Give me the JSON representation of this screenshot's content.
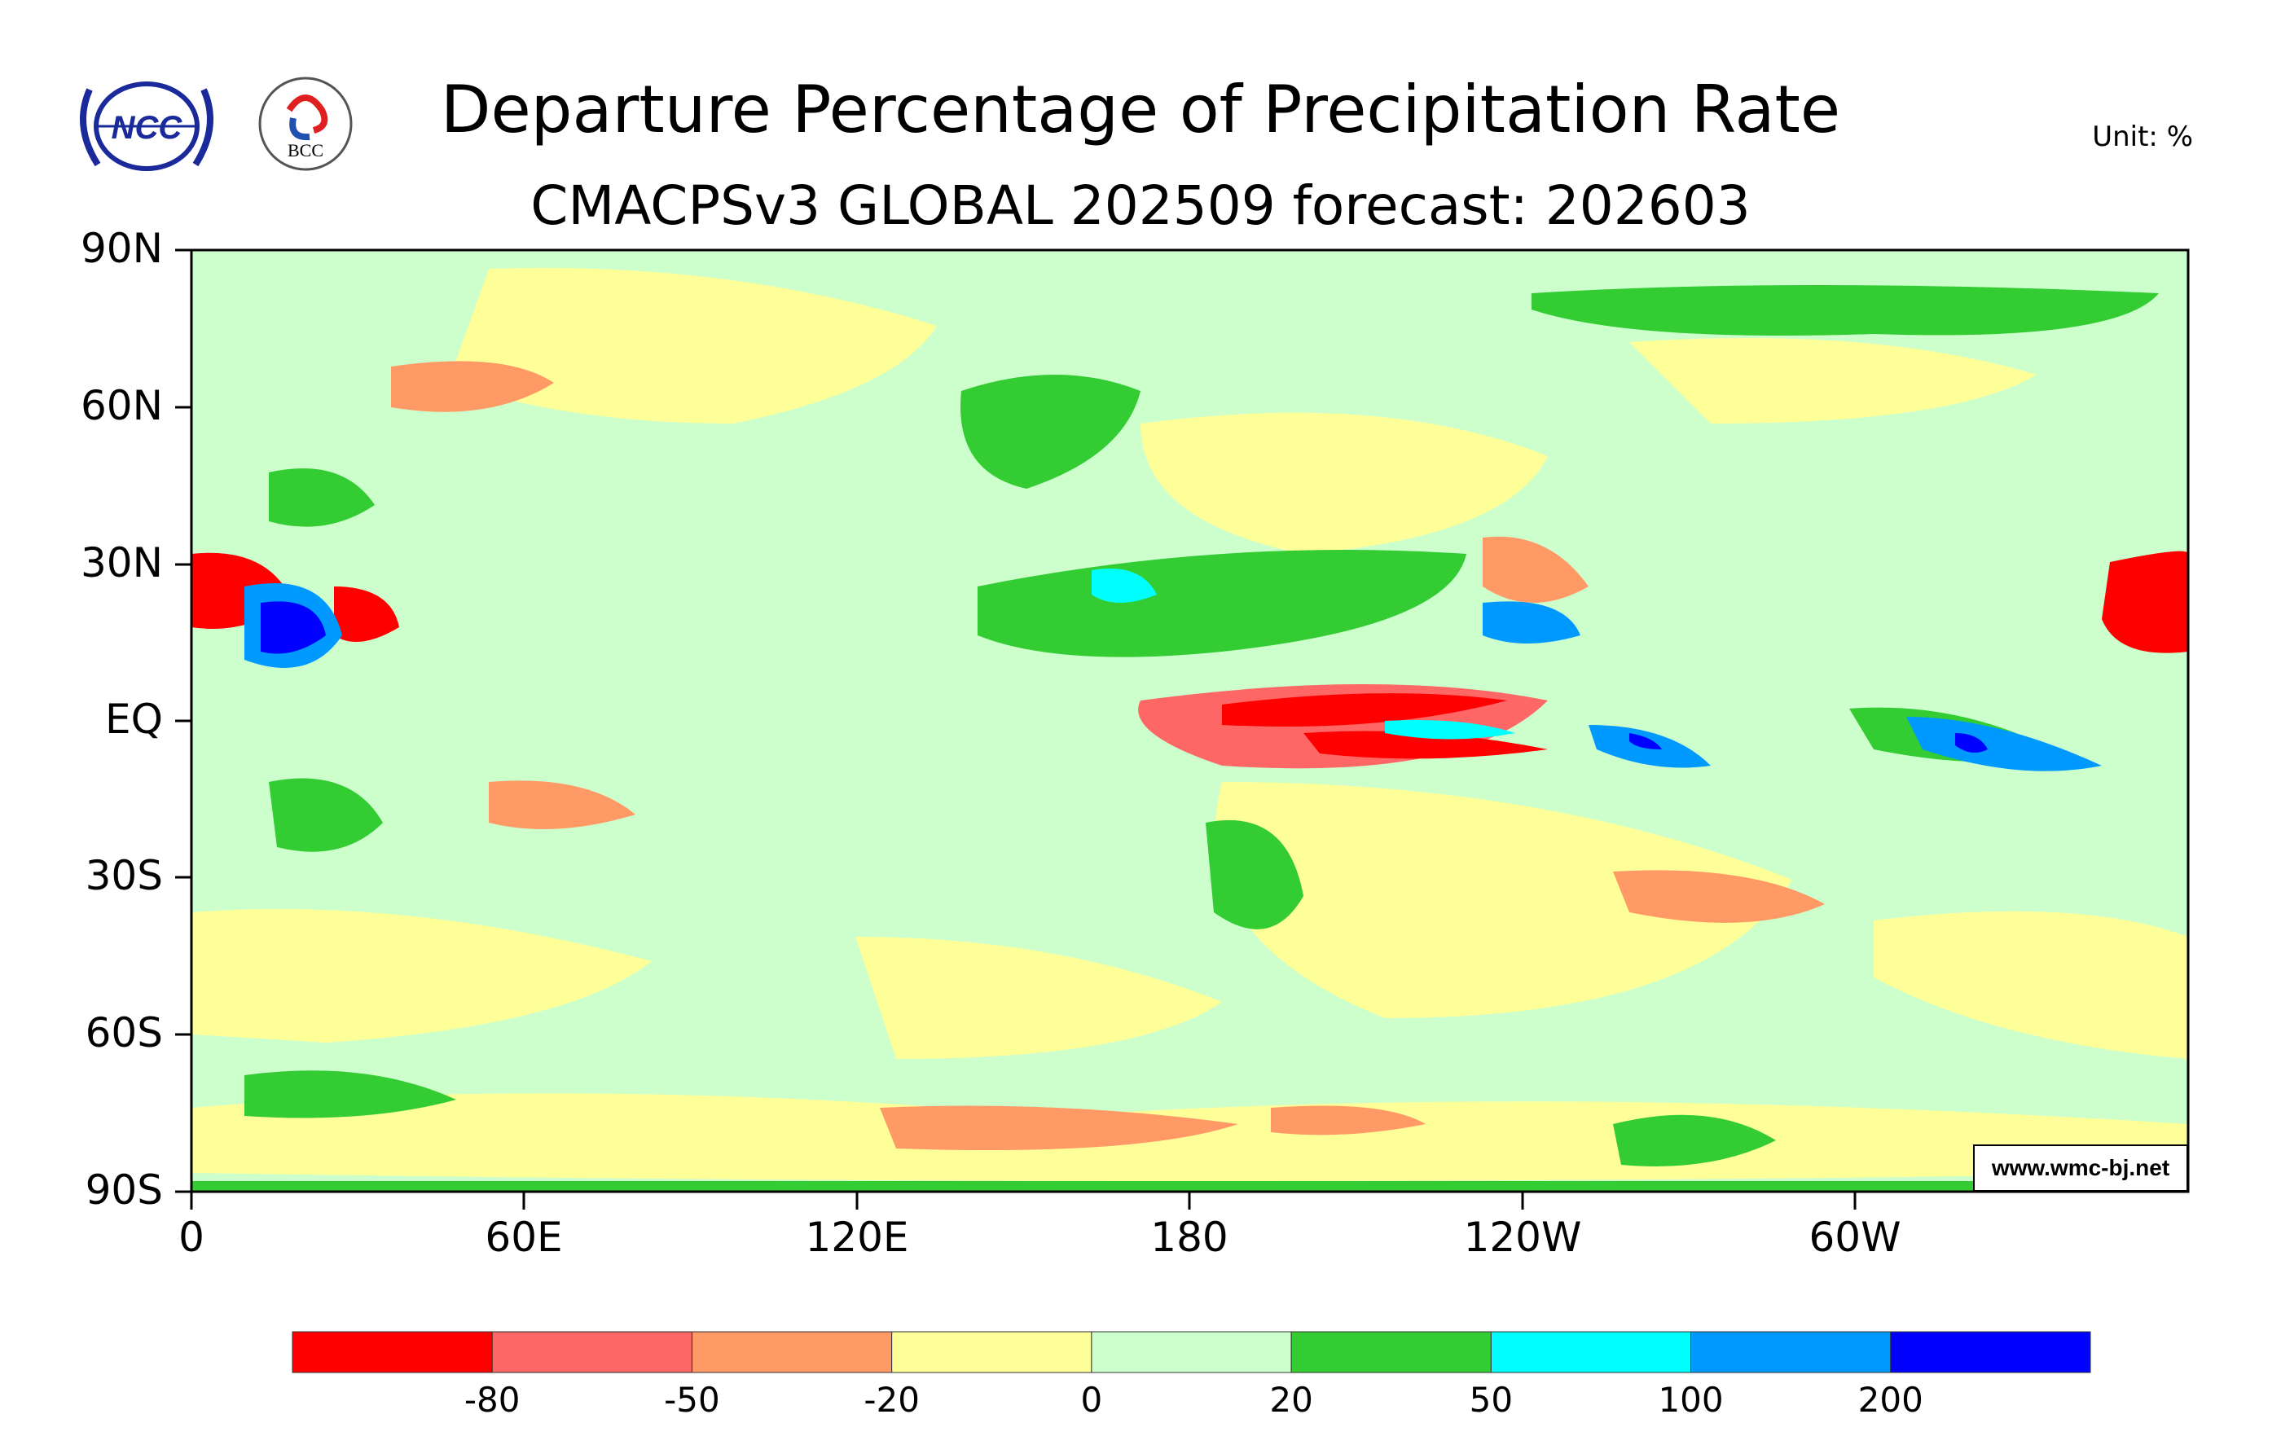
{
  "chart_data": {
    "type": "heatmap",
    "title": "Departure Percentage of Precipitation Rate",
    "subtitle": "CMACPSv3 GLOBAL 202509 forecast: 202603",
    "unit_label": "Unit: %",
    "credit": "www.wmc-bj.net",
    "logos": [
      "NCC",
      "BCC"
    ],
    "y_ticks": [
      "90N",
      "60N",
      "30N",
      "EQ",
      "30S",
      "60S",
      "90S"
    ],
    "x_ticks": [
      "0",
      "60E",
      "120E",
      "180",
      "120W",
      "60W"
    ],
    "xlim": [
      0,
      360
    ],
    "ylim": [
      -90,
      90
    ],
    "colorbar": {
      "levels": [
        "-80",
        "-50",
        "-20",
        "0",
        "20",
        "50",
        "100",
        "200"
      ],
      "colors": [
        "#ff0000",
        "#ff6666",
        "#ff9966",
        "#ffff99",
        "#ccffcc",
        "#33cc33",
        "#00ffff",
        "#0099ff",
        "#0000ff"
      ]
    }
  }
}
